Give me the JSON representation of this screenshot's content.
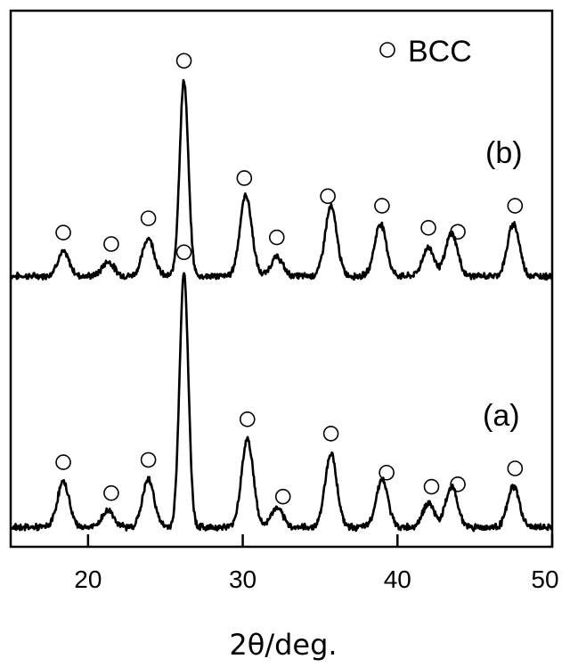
{
  "chart_data": {
    "type": "line",
    "title": "",
    "xlabel": "2θ/deg.",
    "ylabel": "",
    "xlim": [
      15,
      50
    ],
    "x_ticks": [
      20,
      30,
      40,
      50
    ],
    "x_tick_labels": [
      "20",
      "30",
      "40",
      "50"
    ],
    "y_ticks_shown": false,
    "grid": false,
    "legend": {
      "position": "top-right",
      "entries": [
        {
          "marker": "open-circle",
          "label": "BCC"
        }
      ]
    },
    "series": [
      {
        "name": "(b)",
        "baseline": 0,
        "offset": 1.0,
        "peaks": [
          {
            "x": 18.4,
            "h": 0.1
          },
          {
            "x": 21.3,
            "h": 0.06
          },
          {
            "x": 23.9,
            "h": 0.16
          },
          {
            "x": 26.2,
            "h": 0.82
          },
          {
            "x": 30.2,
            "h": 0.34
          },
          {
            "x": 32.2,
            "h": 0.08
          },
          {
            "x": 35.7,
            "h": 0.29
          },
          {
            "x": 38.9,
            "h": 0.22
          },
          {
            "x": 42.0,
            "h": 0.12
          },
          {
            "x": 43.5,
            "h": 0.18
          },
          {
            "x": 47.5,
            "h": 0.22
          }
        ],
        "bcc_markers_x": [
          18.4,
          21.5,
          23.9,
          26.2,
          30.1,
          32.2,
          35.5,
          39.0,
          42.0,
          43.9,
          47.6
        ]
      },
      {
        "name": "(a)",
        "baseline": 0,
        "offset": 0.0,
        "peaks": [
          {
            "x": 18.4,
            "h": 0.19
          },
          {
            "x": 21.3,
            "h": 0.07
          },
          {
            "x": 23.9,
            "h": 0.2
          },
          {
            "x": 26.2,
            "h": 1.07
          },
          {
            "x": 30.3,
            "h": 0.37
          },
          {
            "x": 32.2,
            "h": 0.08
          },
          {
            "x": 35.7,
            "h": 0.31
          },
          {
            "x": 39.0,
            "h": 0.2
          },
          {
            "x": 42.0,
            "h": 0.1
          },
          {
            "x": 43.5,
            "h": 0.17
          },
          {
            "x": 47.5,
            "h": 0.17
          }
        ],
        "bcc_markers_x": [
          18.4,
          21.5,
          23.9,
          26.2,
          30.3,
          32.6,
          35.7,
          39.3,
          42.2,
          43.9,
          47.6
        ]
      }
    ],
    "labels": {
      "a": "(a)",
      "b": "(b)",
      "legend": "BCC"
    }
  }
}
